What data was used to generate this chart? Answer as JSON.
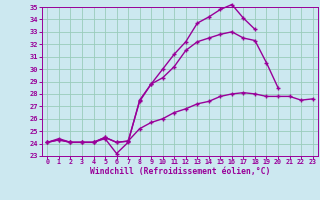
{
  "x": [
    0,
    1,
    2,
    3,
    4,
    5,
    6,
    7,
    8,
    9,
    10,
    11,
    12,
    13,
    14,
    15,
    16,
    17,
    18,
    19,
    20,
    21,
    22,
    23
  ],
  "line1": [
    24.1,
    24.4,
    24.1,
    24.1,
    24.1,
    24.4,
    23.2,
    24.1,
    27.5,
    28.8,
    30.0,
    31.2,
    32.2,
    33.7,
    34.2,
    34.8,
    35.2,
    34.1,
    33.2,
    null,
    null,
    null,
    null,
    null
  ],
  "line2": [
    24.1,
    24.3,
    24.1,
    24.1,
    24.1,
    24.5,
    24.1,
    24.2,
    27.4,
    28.8,
    29.3,
    30.2,
    31.5,
    32.2,
    32.5,
    32.8,
    33.0,
    32.5,
    32.3,
    30.5,
    28.5,
    null,
    null,
    null
  ],
  "line3": [
    24.1,
    24.3,
    24.1,
    24.1,
    24.1,
    24.5,
    24.1,
    24.2,
    25.2,
    25.7,
    26.0,
    26.5,
    26.8,
    27.2,
    27.4,
    27.8,
    28.0,
    28.1,
    28.0,
    27.8,
    27.8,
    27.8,
    27.5,
    27.6
  ],
  "ylim": [
    23,
    35
  ],
  "xlim": [
    -0.5,
    23.5
  ],
  "yticks": [
    23,
    24,
    25,
    26,
    27,
    28,
    29,
    30,
    31,
    32,
    33,
    34,
    35
  ],
  "xticks": [
    0,
    1,
    2,
    3,
    4,
    5,
    6,
    7,
    8,
    9,
    10,
    11,
    12,
    13,
    14,
    15,
    16,
    17,
    18,
    19,
    20,
    21,
    22,
    23
  ],
  "xlabel": "Windchill (Refroidissement éolien,°C)",
  "line_color": "#990099",
  "bg_color": "#cce8f0",
  "grid_color": "#99ccbb",
  "marker": "+"
}
